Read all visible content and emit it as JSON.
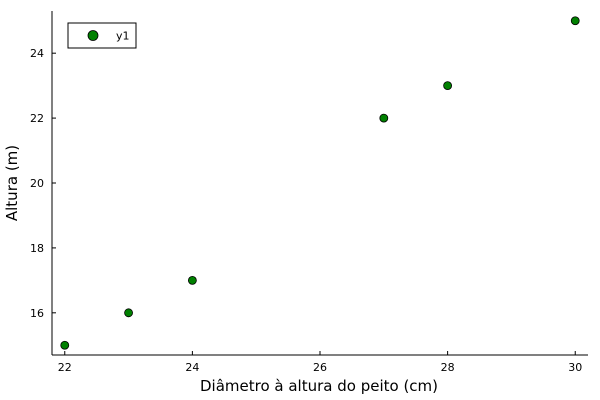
{
  "chart_data": {
    "type": "scatter",
    "xlabel": "Diâmetro à altura do peito (cm)",
    "ylabel": "Altura (m)",
    "xlim": [
      21.8,
      30.2
    ],
    "ylim": [
      14.7,
      25.3
    ],
    "xticks": [
      22,
      24,
      26,
      28,
      30
    ],
    "yticks": [
      16,
      18,
      20,
      22,
      24
    ],
    "grid": false,
    "legend": "top-left",
    "series": [
      {
        "name": "y1",
        "color": "#008000",
        "x": [
          22,
          23,
          24,
          27,
          28,
          30
        ],
        "y": [
          15,
          16,
          17,
          22,
          23,
          25
        ]
      }
    ]
  }
}
